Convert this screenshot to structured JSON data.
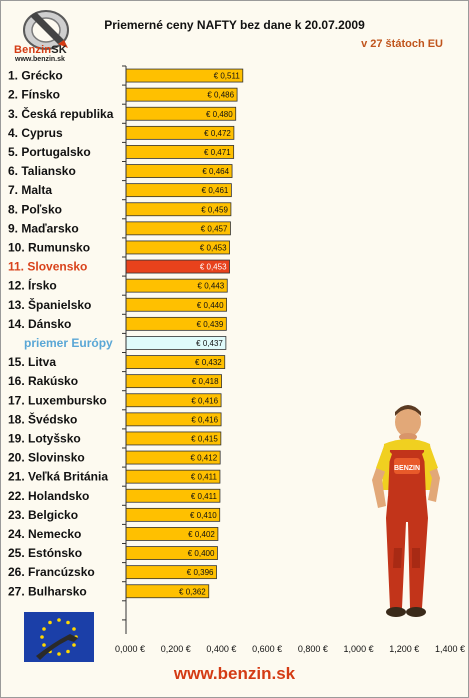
{
  "logo": {
    "brand": "Benzin",
    "suffix": "SK",
    "url": "www.benzin.sk"
  },
  "title": "Priemerné ceny NAFTY bez dane k 20.07.2009",
  "subtitle": "v 27 štátoch EU",
  "footer_url": "www.benzin.sk",
  "colors": {
    "bar": "#ffc000",
    "bar_highlight": "#e8421c",
    "bar_average": "#e0fbfb",
    "highlight_label": "#d9431c",
    "average_label": "#5aa7d6",
    "accent": "#d43b14"
  },
  "chart_data": {
    "type": "bar",
    "orientation": "horizontal",
    "title": "Priemerné ceny NAFTY bez dane k 20.07.2009",
    "subtitle": "v 27 štátoch EU",
    "categories": [
      "1. Grécko",
      "2. Fínsko",
      "3. Česká republika",
      "4. Cyprus",
      "5. Portugalsko",
      "6. Taliansko",
      "7. Malta",
      "8. Poľsko",
      "9. Maďarsko",
      "10. Rumunsko",
      "11. Slovensko",
      "12. Írsko",
      "13. Španielsko",
      "14. Dánsko",
      "priemer Európy",
      "15. Litva",
      "16. Rakúsko",
      "17. Luxembursko",
      "18. Švédsko",
      "19. Lotyšsko",
      "20. Slovinsko",
      "21. Veľká Británia",
      "22. Holandsko",
      "23. Belgicko",
      "24. Nemecko",
      "25. Estónsko",
      "26. Francúzsko",
      "27. Bulharsko"
    ],
    "values": [
      0.511,
      0.486,
      0.48,
      0.472,
      0.471,
      0.464,
      0.461,
      0.459,
      0.457,
      0.453,
      0.453,
      0.443,
      0.44,
      0.439,
      0.437,
      0.432,
      0.418,
      0.416,
      0.416,
      0.415,
      0.412,
      0.411,
      0.411,
      0.41,
      0.402,
      0.4,
      0.396,
      0.362
    ],
    "value_labels": [
      "€ 0,511",
      "€ 0,486",
      "€ 0,480",
      "€ 0,472",
      "€ 0,471",
      "€ 0,464",
      "€ 0,461",
      "€ 0,459",
      "€ 0,457",
      "€ 0,453",
      "€ 0,453",
      "€ 0,443",
      "€ 0,440",
      "€ 0,439",
      "€ 0,437",
      "€ 0,432",
      "€ 0,418",
      "€ 0,416",
      "€ 0,416",
      "€ 0,415",
      "€ 0,412",
      "€ 0,411",
      "€ 0,411",
      "€ 0,410",
      "€ 0,402",
      "€ 0,400",
      "€ 0,396",
      "€ 0,362"
    ],
    "highlight_index": 10,
    "average_index": 14,
    "xlim": [
      0,
      1.4
    ],
    "x_ticks": [
      0,
      0.2,
      0.4,
      0.6,
      0.8,
      1.0,
      1.2,
      1.4
    ],
    "x_tick_labels": [
      "0,000 €",
      "0,200 €",
      "0,400 €",
      "0,600 €",
      "0,800 €",
      "1,000 €",
      "1,200 €",
      "1,400 €"
    ],
    "grid": false,
    "legend": "none"
  }
}
